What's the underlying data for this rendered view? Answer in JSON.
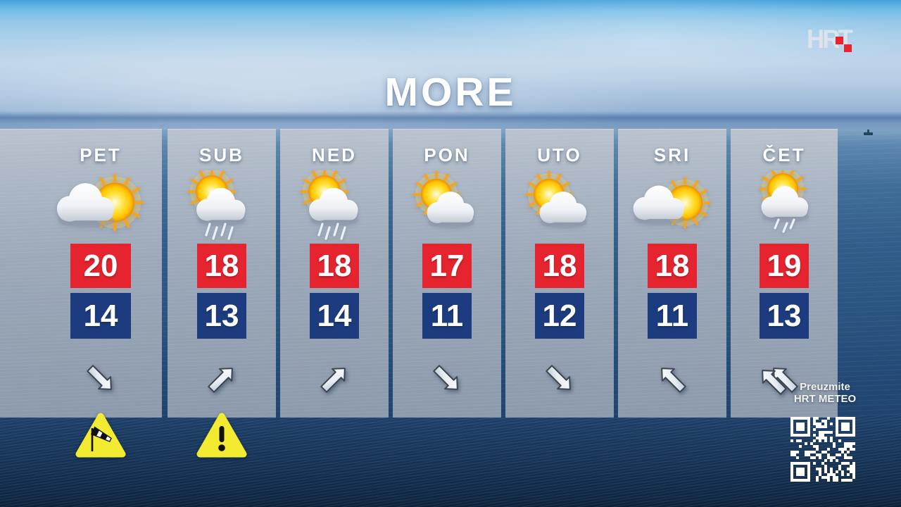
{
  "header": {
    "title": "MORE"
  },
  "branding": {
    "logo_text": "HRT"
  },
  "promo": {
    "line1": "Preuzmite",
    "line2": "HRT METEO"
  },
  "colors": {
    "high_bg": "#e62430",
    "low_bg": "#1d3c80",
    "warning_yellow": "#f3ea32",
    "accent_red": "#e8232e",
    "qr_modules": "#ffffff"
  },
  "forecast": {
    "days": [
      {
        "label": "PET",
        "high": "20",
        "low": "14",
        "icon": "cloud-sun",
        "wind_dir": "SE",
        "wind_arrows": 1,
        "warning": "windsock"
      },
      {
        "label": "SUB",
        "high": "18",
        "low": "13",
        "icon": "sun-rain",
        "wind_dir": "NE",
        "wind_arrows": 1,
        "warning": "exclamation"
      },
      {
        "label": "NED",
        "high": "18",
        "low": "14",
        "icon": "sun-rain",
        "wind_dir": "NE",
        "wind_arrows": 1,
        "warning": ""
      },
      {
        "label": "PON",
        "high": "17",
        "low": "11",
        "icon": "sun-cloud",
        "wind_dir": "SE",
        "wind_arrows": 1,
        "warning": ""
      },
      {
        "label": "UTO",
        "high": "18",
        "low": "12",
        "icon": "sun-cloud",
        "wind_dir": "SE",
        "wind_arrows": 1,
        "warning": ""
      },
      {
        "label": "SRI",
        "high": "18",
        "low": "11",
        "icon": "cloud-sun",
        "wind_dir": "NW",
        "wind_arrows": 1,
        "warning": ""
      },
      {
        "label": "ČET",
        "high": "19",
        "low": "13",
        "icon": "sun-light-rain",
        "wind_dir": "NW",
        "wind_arrows": 2,
        "warning": ""
      }
    ]
  }
}
